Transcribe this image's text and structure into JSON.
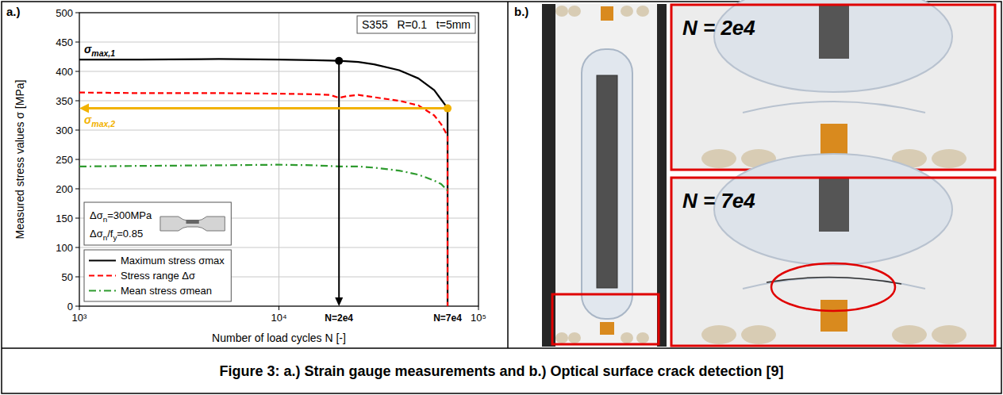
{
  "chart_data": {
    "type": "line",
    "panel": "a.)",
    "x_label": "Number of load cycles N [-]",
    "y_label": "Measured stress values σ [MPa]",
    "log": "x",
    "grid": true,
    "legend": "lower left",
    "xlim": [
      1000,
      100000
    ],
    "xticks": [
      {
        "value": 1000,
        "label": "10³"
      },
      {
        "value": 10000,
        "label": "10⁴"
      },
      {
        "value": 100000,
        "label": "10⁵"
      }
    ],
    "ylim": [
      0,
      500
    ],
    "yticks": [
      0,
      50,
      100,
      150,
      200,
      250,
      300,
      350,
      400,
      450,
      500
    ],
    "series": [
      {
        "name": "Maximum stress σmax",
        "color": "#000000",
        "line_style": "solid",
        "x": [
          1000,
          2000,
          5000,
          10000,
          15000,
          20000,
          25000,
          30000,
          40000,
          50000,
          60000,
          65000,
          68000,
          70000,
          70000
        ],
        "values": [
          420,
          420,
          421,
          420,
          419,
          418,
          416,
          412,
          402,
          388,
          368,
          352,
          343,
          337,
          0
        ]
      },
      {
        "name": "Stress range Δσ",
        "color": "#ff0000",
        "line_style": "dashed",
        "x": [
          1000,
          2000,
          5000,
          10000,
          15000,
          18000,
          20000,
          22000,
          25000,
          30000,
          40000,
          50000,
          60000,
          65000,
          68000,
          70000,
          70000
        ],
        "values": [
          364,
          363,
          363,
          362,
          361,
          360,
          355,
          358,
          360,
          356,
          350,
          342,
          325,
          310,
          298,
          290,
          0
        ]
      },
      {
        "name": "Mean stress σmean",
        "color": "#2e9b2e",
        "line_style": "dashdot",
        "x": [
          1000,
          2000,
          5000,
          10000,
          15000,
          20000,
          25000,
          30000,
          40000,
          50000,
          60000,
          65000,
          70000
        ],
        "values": [
          238,
          239,
          240,
          241,
          240,
          238,
          238,
          236,
          231,
          224,
          214,
          208,
          197
        ]
      }
    ],
    "markers": [
      {
        "x": 20000,
        "y": 418,
        "label": "N=2e4",
        "symbol": [
          "σ",
          "max,1"
        ],
        "color": "#000000"
      },
      {
        "x": 70000,
        "y": 337,
        "label": "N=7e4",
        "symbol": [
          "σ",
          "max,2"
        ],
        "color": "#f2b200"
      }
    ],
    "annotations": {
      "info": "S355   R=0.1   t=5mm",
      "load": [
        [
          "Δσ",
          "n",
          "=300MPa"
        ],
        [
          "Δσ",
          "n",
          "/f",
          "y",
          "=0.85"
        ]
      ]
    }
  },
  "panel_b": {
    "label": "b.)",
    "views": [
      "N = 2e4",
      "N = 7e4"
    ]
  },
  "caption": "Figure 3: a.) Strain gauge measurements and b.) Optical surface crack detection [9]"
}
